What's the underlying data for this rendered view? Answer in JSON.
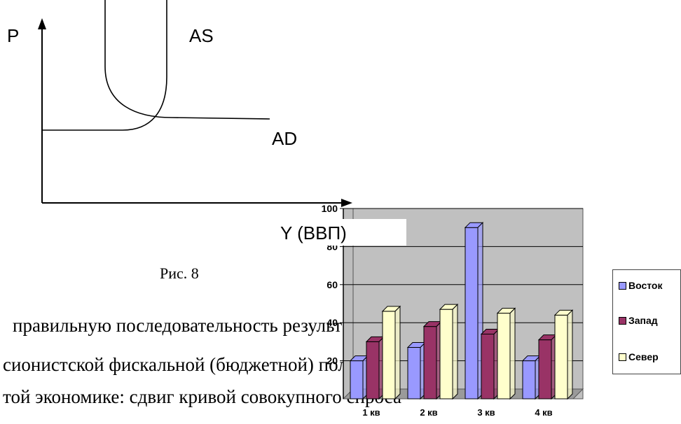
{
  "diagram": {
    "p_label": "P",
    "as_label": "AS",
    "ad_label": "AD",
    "y_label": "Y (ВВП)",
    "caption": "Рис. 8"
  },
  "text_lines": [
    "правильную   последовательность результатов",
    "сионистской фискальной (бюджетной) политики",
    "той экономике: сдвиг кривой совокупного спроса"
  ],
  "chart_data": {
    "type": "bar",
    "categories": [
      "1 кв",
      "2 кв",
      "3 кв",
      "4 кв"
    ],
    "series": [
      {
        "name": "Восток",
        "values": [
          20,
          27,
          90,
          20
        ],
        "color": "#9999ff"
      },
      {
        "name": "Запад",
        "values": [
          30,
          38,
          34,
          31
        ],
        "color": "#993366"
      },
      {
        "name": "Север",
        "values": [
          46,
          47,
          45,
          44
        ],
        "color": "#ffffcc"
      }
    ],
    "y_ticks": [
      "100",
      "80",
      "60",
      "40",
      "20"
    ],
    "ylim": [
      0,
      100
    ],
    "grid": true,
    "legend_position": "right"
  }
}
